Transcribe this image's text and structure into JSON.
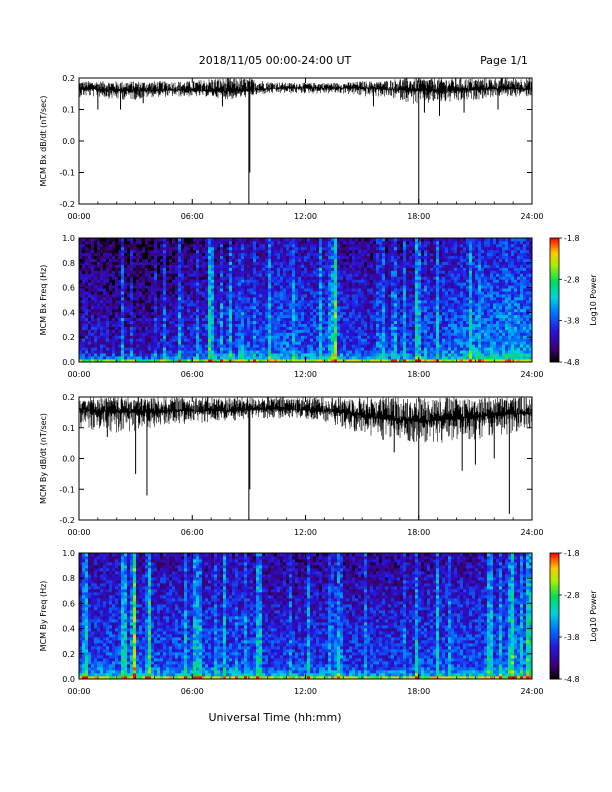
{
  "header": {
    "title": "2018/11/05  00:00-24:00 UT",
    "page": "Page 1/1"
  },
  "footer": {
    "xlabel": "Universal Time (hh:mm)"
  },
  "chart_data": [
    {
      "type": "line",
      "ylabel": "MCM Bx dB/dt (nT/sec)",
      "ylim": [
        -0.2,
        0.2
      ],
      "yticks": [
        "0.2",
        "0.1",
        "0.0",
        "-0.1",
        "-0.2"
      ],
      "ytick_values": [
        0.2,
        0.1,
        0.0,
        -0.1,
        -0.2
      ],
      "xlim": [
        0,
        24
      ],
      "xticks": [
        "00:00",
        "06:00",
        "12:00",
        "18:00",
        "24:00"
      ],
      "xtick_values": [
        0,
        6,
        12,
        18,
        24
      ],
      "x_hours": [
        0,
        1,
        2,
        3,
        4,
        5,
        6,
        7,
        8,
        9,
        10,
        11,
        12,
        13,
        14,
        15,
        16,
        17,
        18,
        19,
        20,
        21,
        22,
        23,
        24
      ],
      "baseline": [
        0.165,
        0.165,
        0.16,
        0.16,
        0.16,
        0.162,
        0.16,
        0.158,
        0.158,
        0.16,
        0.165,
        0.168,
        0.168,
        0.168,
        0.168,
        0.168,
        0.165,
        0.162,
        0.16,
        0.16,
        0.16,
        0.162,
        0.165,
        0.165,
        0.165
      ],
      "upper": [
        0.19,
        0.19,
        0.19,
        0.19,
        0.19,
        0.19,
        0.19,
        0.2,
        0.2,
        0.2,
        0.19,
        0.185,
        0.185,
        0.185,
        0.185,
        0.19,
        0.19,
        0.2,
        0.2,
        0.2,
        0.2,
        0.2,
        0.2,
        0.2,
        0.2
      ],
      "lower": [
        0.14,
        0.14,
        0.13,
        0.13,
        0.14,
        0.14,
        0.14,
        0.14,
        0.13,
        0.14,
        0.15,
        0.15,
        0.15,
        0.15,
        0.15,
        0.14,
        0.14,
        0.13,
        0.11,
        0.12,
        0.12,
        0.13,
        0.14,
        0.14,
        0.14
      ],
      "spikes": [
        {
          "t": 1.0,
          "v": 0.1
        },
        {
          "t": 2.2,
          "v": 0.1
        },
        {
          "t": 3.4,
          "v": 0.12
        },
        {
          "t": 7.6,
          "v": 0.11
        },
        {
          "t": 9.0,
          "v": -0.2
        },
        {
          "t": 9.05,
          "v": -0.1
        },
        {
          "t": 15.6,
          "v": 0.11
        },
        {
          "t": 18.0,
          "v": -0.2
        },
        {
          "t": 18.3,
          "v": 0.09
        },
        {
          "t": 19.1,
          "v": 0.08
        },
        {
          "t": 20.4,
          "v": 0.09
        },
        {
          "t": 22.2,
          "v": 0.1
        }
      ]
    },
    {
      "type": "heatmap",
      "ylabel": "MCM Bx Freq (Hz)",
      "ylim": [
        0.0,
        1.0
      ],
      "yticks": [
        "1.0",
        "0.8",
        "0.6",
        "0.4",
        "0.2",
        "0.0"
      ],
      "ytick_values": [
        1.0,
        0.8,
        0.6,
        0.4,
        0.2,
        0.0
      ],
      "xlim": [
        0,
        24
      ],
      "xticks": [
        "00:00",
        "06:00",
        "12:00",
        "18:00",
        "24:00"
      ],
      "xtick_values": [
        0,
        6,
        12,
        18,
        24
      ],
      "colorbar": {
        "label": "Log10 Power",
        "range": [
          -4.8,
          -1.8
        ],
        "ticks": [
          "-1.8",
          "-2.8",
          "-3.8",
          "-4.8"
        ],
        "tick_values": [
          -1.8,
          -2.8,
          -3.8,
          -4.8
        ]
      },
      "hours": [
        0,
        1,
        2,
        3,
        4,
        5,
        6,
        7,
        8,
        9,
        10,
        11,
        12,
        13,
        14,
        15,
        16,
        17,
        18,
        19,
        20,
        21,
        22,
        23,
        24
      ],
      "background_power": [
        -4.3,
        -4.3,
        -4.4,
        -4.4,
        -4.4,
        -4.3,
        -4.2,
        -4.2,
        -4.1,
        -4.0,
        -4.0,
        -3.9,
        -4.0,
        -4.0,
        -4.1,
        -4.1,
        -4.2,
        -4.1,
        -4.1,
        -4.0,
        -3.9,
        -3.8,
        -3.8,
        -3.7,
        -3.8
      ],
      "bursts": [
        {
          "t": 6.9,
          "power": -2.9
        },
        {
          "t": 7.05,
          "power": -3.3
        },
        {
          "t": 13.6,
          "power": -2.6
        },
        {
          "t": 17.9,
          "power": -3.0
        },
        {
          "t": 5.35,
          "power": -3.4
        },
        {
          "t": 4.5,
          "power": -3.5
        },
        {
          "t": 2.3,
          "power": -3.6
        },
        {
          "t": 8.6,
          "power": -3.4
        },
        {
          "t": 15.9,
          "power": -3.4
        }
      ]
    },
    {
      "type": "line",
      "ylabel": "MCM By dB/dt (nT/sec)",
      "ylim": [
        -0.2,
        0.2
      ],
      "yticks": [
        "0.2",
        "0.1",
        "0.0",
        "-0.1",
        "-0.2"
      ],
      "ytick_values": [
        0.2,
        0.1,
        0.0,
        -0.1,
        -0.2
      ],
      "xlim": [
        0,
        24
      ],
      "xticks": [
        "00:00",
        "06:00",
        "12:00",
        "18:00",
        "24:00"
      ],
      "xtick_values": [
        0,
        6,
        12,
        18,
        24
      ],
      "x_hours": [
        0,
        1,
        2,
        3,
        4,
        5,
        6,
        7,
        8,
        9,
        10,
        11,
        12,
        13,
        14,
        15,
        16,
        17,
        18,
        19,
        20,
        21,
        22,
        23,
        24
      ],
      "baseline": [
        0.16,
        0.155,
        0.15,
        0.15,
        0.15,
        0.155,
        0.155,
        0.155,
        0.155,
        0.16,
        0.16,
        0.16,
        0.158,
        0.155,
        0.15,
        0.14,
        0.13,
        0.125,
        0.12,
        0.125,
        0.13,
        0.135,
        0.14,
        0.145,
        0.145
      ],
      "upper": [
        0.2,
        0.2,
        0.2,
        0.2,
        0.2,
        0.2,
        0.2,
        0.2,
        0.2,
        0.2,
        0.2,
        0.2,
        0.2,
        0.2,
        0.2,
        0.2,
        0.2,
        0.2,
        0.2,
        0.2,
        0.2,
        0.2,
        0.2,
        0.2,
        0.2
      ],
      "lower": [
        0.1,
        0.09,
        0.08,
        0.09,
        0.1,
        0.11,
        0.11,
        0.12,
        0.12,
        0.13,
        0.13,
        0.13,
        0.13,
        0.12,
        0.1,
        0.08,
        0.06,
        0.06,
        0.05,
        0.05,
        0.05,
        0.06,
        0.07,
        0.08,
        0.09
      ],
      "spikes": [
        {
          "t": 1.5,
          "v": 0.07
        },
        {
          "t": 3.0,
          "v": -0.05
        },
        {
          "t": 3.6,
          "v": -0.12
        },
        {
          "t": 9.0,
          "v": -0.2
        },
        {
          "t": 9.05,
          "v": -0.1
        },
        {
          "t": 16.7,
          "v": 0.02
        },
        {
          "t": 18.0,
          "v": -0.2
        },
        {
          "t": 20.3,
          "v": -0.04
        },
        {
          "t": 21.0,
          "v": -0.02
        },
        {
          "t": 22.0,
          "v": 0.0
        },
        {
          "t": 22.8,
          "v": -0.18
        }
      ]
    },
    {
      "type": "heatmap",
      "ylabel": "MCM By Freq (Hz)",
      "ylim": [
        0.0,
        1.0
      ],
      "yticks": [
        "1.0",
        "0.8",
        "0.6",
        "0.4",
        "0.2",
        "0.0"
      ],
      "ytick_values": [
        1.0,
        0.8,
        0.6,
        0.4,
        0.2,
        0.0
      ],
      "xlim": [
        0,
        24
      ],
      "xticks": [
        "00:00",
        "06:00",
        "12:00",
        "18:00",
        "24:00"
      ],
      "xtick_values": [
        0,
        6,
        12,
        18,
        24
      ],
      "colorbar": {
        "label": "Log10 Power",
        "range": [
          -4.8,
          -1.8
        ],
        "ticks": [
          "-1.8",
          "-2.8",
          "-3.8",
          "-4.8"
        ],
        "tick_values": [
          -1.8,
          -2.8,
          -3.8,
          -4.8
        ]
      },
      "hours": [
        0,
        1,
        2,
        3,
        4,
        5,
        6,
        7,
        8,
        9,
        10,
        11,
        12,
        13,
        14,
        15,
        16,
        17,
        18,
        19,
        20,
        21,
        22,
        23,
        24
      ],
      "background_power": [
        -4.0,
        -4.0,
        -4.0,
        -4.0,
        -4.0,
        -4.0,
        -4.0,
        -4.0,
        -4.0,
        -4.0,
        -4.1,
        -4.1,
        -4.1,
        -4.1,
        -4.1,
        -4.1,
        -4.1,
        -4.1,
        -4.1,
        -4.0,
        -4.0,
        -4.0,
        -4.0,
        -3.9,
        -3.9
      ],
      "bursts": [
        {
          "t": 2.9,
          "power": -2.0
        },
        {
          "t": 3.7,
          "power": -2.6
        },
        {
          "t": 9.5,
          "power": -2.9
        },
        {
          "t": 6.3,
          "power": -3.3
        },
        {
          "t": 13.5,
          "power": -3.5
        },
        {
          "t": 15.2,
          "power": -3.5
        },
        {
          "t": 17.9,
          "power": -3.3
        },
        {
          "t": 23.0,
          "power": -2.7
        },
        {
          "t": 23.8,
          "power": -2.8
        }
      ]
    }
  ]
}
